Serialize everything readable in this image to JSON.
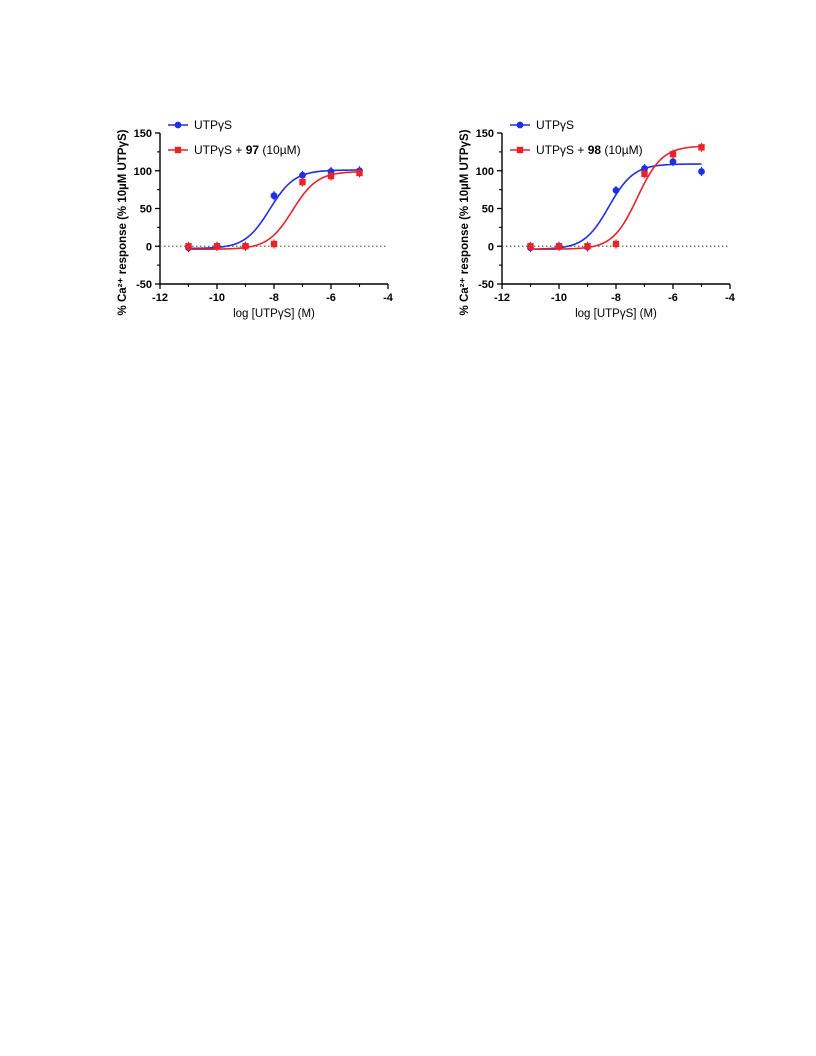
{
  "colors": {
    "series_blue": "#1f2ee6",
    "series_red": "#e8232a",
    "baseline": "#666666"
  },
  "chart_data": [
    {
      "type": "scatter",
      "xlabel": "log [UTPγS] (M)",
      "ylabel": "% Ca²⁺ response (% 10µM UTPγS)",
      "xlim": [
        -12,
        -4
      ],
      "ylim": [
        -50,
        150
      ],
      "x_ticks": [
        -12,
        -10,
        -8,
        -6,
        -4
      ],
      "y_ticks": [
        -50,
        0,
        50,
        100,
        150
      ],
      "dotted_zero_line": true,
      "legend": "top-left",
      "series": [
        {
          "name": "UTPγS",
          "marker": "circle",
          "color": "#1f2ee6",
          "x": [
            -11,
            -10,
            -9,
            -8,
            -7,
            -6,
            -5
          ],
          "y": [
            -2,
            0,
            0,
            67,
            94,
            99,
            100
          ],
          "fit": {
            "bottom": -3,
            "top": 101,
            "logEC50": -8.15
          }
        },
        {
          "name": "UTPγS + 97 (10µM)",
          "name_prefix": "UTPγS + ",
          "name_bold": "97",
          "name_suffix": " (10µM)",
          "marker": "square",
          "color": "#e8232a",
          "x": [
            -11,
            -10,
            -9,
            -8,
            -7,
            -6,
            -5
          ],
          "y": [
            0,
            0,
            0,
            3,
            85,
            93,
            97
          ],
          "fit": {
            "bottom": -4,
            "top": 99,
            "logEC50": -7.35
          }
        }
      ]
    },
    {
      "type": "scatter",
      "xlabel": "log [UTPγS] (M)",
      "ylabel": "% Ca²⁺ response (% 10µM UTPγS)",
      "xlim": [
        -12,
        -4
      ],
      "ylim": [
        -50,
        150
      ],
      "x_ticks": [
        -12,
        -10,
        -8,
        -6,
        -4
      ],
      "y_ticks": [
        -50,
        0,
        50,
        100,
        150
      ],
      "dotted_zero_line": true,
      "legend": "top-left",
      "series": [
        {
          "name": "UTPγS",
          "marker": "circle",
          "color": "#1f2ee6",
          "x": [
            -11,
            -10,
            -9,
            -8,
            -7,
            -6,
            -5
          ],
          "y": [
            -2,
            0,
            -1,
            74,
            103,
            112,
            99
          ],
          "fit": {
            "bottom": -4,
            "top": 109,
            "logEC50": -8.25
          }
        },
        {
          "name": "UTPγS + 98 (10µM)",
          "name_prefix": "UTPγS + ",
          "name_bold": "98",
          "name_suffix": " (10µM)",
          "marker": "square",
          "color": "#e8232a",
          "x": [
            -11,
            -10,
            -9,
            -8,
            -7,
            -6,
            -5
          ],
          "y": [
            0,
            0,
            0,
            3,
            96,
            122,
            131
          ],
          "fit": {
            "bottom": -4,
            "top": 133,
            "logEC50": -7.25
          }
        }
      ]
    }
  ]
}
